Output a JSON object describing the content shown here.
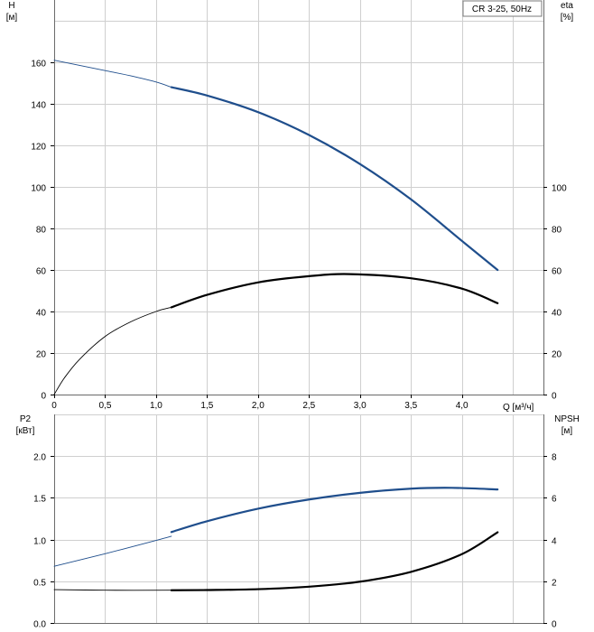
{
  "legend": {
    "label": "CR 3-25, 50Hz"
  },
  "chart_data": [
    {
      "type": "line",
      "title": "",
      "xlabel": "Q [м³/ч]",
      "xlim": [
        0,
        4.8
      ],
      "xticks": [
        0,
        0.5,
        1.0,
        1.5,
        2.0,
        2.5,
        3.0,
        3.5,
        4.0
      ],
      "xtick_labels": [
        "0",
        "0,5",
        "1,0",
        "1,5",
        "2,0",
        "2,5",
        "3,0",
        "3,5",
        "4,0"
      ],
      "left_axis": {
        "label_top": "H",
        "label_unit": "[м]",
        "ylim": [
          0,
          190
        ],
        "ticks": [
          0,
          20,
          40,
          60,
          80,
          100,
          120,
          140,
          160
        ],
        "tick_labels": [
          "0",
          "20",
          "40",
          "60",
          "80",
          "100",
          "120",
          "140",
          "160"
        ]
      },
      "right_axis": {
        "label_top": "eta",
        "label_unit": "[%]",
        "ylim": [
          0,
          190
        ],
        "ticks": [
          0,
          20,
          40,
          60,
          80,
          100
        ],
        "tick_labels": [
          "0",
          "20",
          "40",
          "60",
          "80",
          "100"
        ]
      },
      "grid": true,
      "series": [
        {
          "axis": "left",
          "color": "#1f4e8c",
          "x": [
            0,
            0.25,
            0.5,
            0.75,
            1.0,
            1.15
          ],
          "y": [
            161,
            158.5,
            156,
            153.5,
            150.5,
            148
          ],
          "style": "thin"
        },
        {
          "axis": "left",
          "color": "#1f4e8c",
          "x": [
            1.15,
            1.5,
            2.0,
            2.5,
            3.0,
            3.5,
            4.0,
            4.35
          ],
          "y": [
            148,
            144,
            136,
            125,
            111,
            94,
            74,
            60
          ],
          "style": "thick"
        },
        {
          "axis": "right",
          "color": "#000000",
          "x": [
            0,
            0.1,
            0.25,
            0.5,
            0.75,
            1.0,
            1.15
          ],
          "y": [
            0,
            8,
            17,
            28,
            35,
            40,
            42
          ],
          "style": "thin"
        },
        {
          "axis": "right",
          "color": "#000000",
          "x": [
            1.15,
            1.5,
            2.0,
            2.5,
            2.9,
            3.5,
            4.0,
            4.35
          ],
          "y": [
            42,
            48,
            54,
            57,
            58,
            56,
            51,
            44
          ],
          "style": "thick"
        }
      ]
    },
    {
      "type": "line",
      "title": "",
      "xlabel": "",
      "xlim": [
        0,
        4.8
      ],
      "left_axis": {
        "label_top": "P2",
        "label_unit": "[кВт]",
        "ylim": [
          0,
          2.5
        ],
        "ticks": [
          0,
          0.5,
          1.0,
          1.5,
          2.0
        ],
        "tick_labels": [
          "0.0",
          "0.5",
          "1.0",
          "1.5",
          "2.0"
        ]
      },
      "right_axis": {
        "label_top": "NPSH",
        "label_unit": "[м]",
        "ylim": [
          0,
          10
        ],
        "ticks": [
          0,
          2,
          4,
          6,
          8
        ],
        "tick_labels": [
          "0",
          "2",
          "4",
          "6",
          "8"
        ]
      },
      "grid": true,
      "series": [
        {
          "axis": "left",
          "color": "#1f4e8c",
          "x": [
            0,
            0.5,
            1.0,
            1.15
          ],
          "y": [
            0.68,
            0.83,
            0.99,
            1.04
          ],
          "style": "thin"
        },
        {
          "axis": "left",
          "color": "#1f4e8c",
          "x": [
            1.15,
            1.5,
            2.0,
            2.5,
            3.0,
            3.5,
            3.9,
            4.35
          ],
          "y": [
            1.09,
            1.22,
            1.37,
            1.48,
            1.56,
            1.61,
            1.62,
            1.6
          ],
          "style": "thick"
        },
        {
          "axis": "right",
          "color": "#000000",
          "x": [
            0,
            0.5,
            1.15
          ],
          "y": [
            1.6,
            1.57,
            1.57
          ],
          "style": "thin"
        },
        {
          "axis": "right",
          "color": "#000000",
          "x": [
            1.15,
            1.5,
            2.0,
            2.5,
            3.0,
            3.5,
            4.0,
            4.35
          ],
          "y": [
            1.57,
            1.58,
            1.62,
            1.74,
            1.98,
            2.45,
            3.3,
            4.35
          ],
          "style": "thick"
        }
      ]
    }
  ]
}
